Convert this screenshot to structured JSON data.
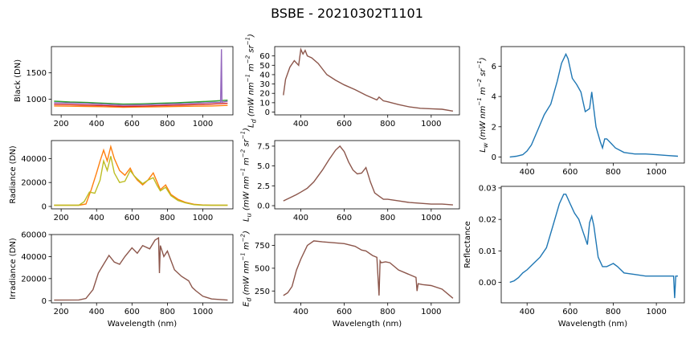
{
  "figure": {
    "title": "BSBE - 20210302T1101"
  },
  "chart_data": [
    {
      "id": "black",
      "type": "line",
      "title": "",
      "xlabel": "",
      "ylabel": "Black (DN)",
      "xlim": [
        145,
        1170
      ],
      "ylim": [
        700,
        2000
      ],
      "xticks": [
        200,
        400,
        600,
        800,
        1000
      ],
      "yticks": [
        1000,
        1500
      ],
      "ytick_labels": [
        "1000",
        "1500"
      ],
      "series": [
        {
          "color": "#ff7f0e",
          "x": [
            160,
            250,
            350,
            450,
            550,
            650,
            750,
            850,
            950,
            1050,
            1140
          ],
          "y": [
            870,
            865,
            860,
            855,
            845,
            850,
            855,
            860,
            865,
            870,
            880
          ]
        },
        {
          "color": "#2ca02c",
          "x": [
            160,
            250,
            350,
            450,
            550,
            650,
            750,
            850,
            950,
            1050,
            1140
          ],
          "y": [
            960,
            945,
            935,
            920,
            905,
            910,
            920,
            930,
            945,
            960,
            980
          ]
        },
        {
          "color": "#d62728",
          "x": [
            160,
            250,
            350,
            450,
            550,
            650,
            750,
            850,
            950,
            1050,
            1140
          ],
          "y": [
            900,
            895,
            885,
            875,
            860,
            865,
            875,
            885,
            895,
            905,
            920
          ]
        },
        {
          "color": "#9467bd",
          "x": [
            160,
            250,
            350,
            450,
            550,
            650,
            750,
            850,
            950,
            1050,
            1100,
            1105,
            1108,
            1112,
            1140
          ],
          "y": [
            930,
            925,
            915,
            900,
            885,
            890,
            900,
            910,
            920,
            935,
            940,
            1950,
            940,
            945,
            960
          ]
        }
      ]
    },
    {
      "id": "radiance",
      "type": "line",
      "title": "",
      "xlabel": "",
      "ylabel": "Radiance (DN)",
      "xlim": [
        145,
        1170
      ],
      "ylim": [
        -2000,
        55000
      ],
      "xticks": [
        200,
        400,
        600,
        800,
        1000
      ],
      "yticks": [
        0,
        20000,
        40000
      ],
      "ytick_labels": [
        "0",
        "20000",
        "40000"
      ],
      "series": [
        {
          "color": "#ff7f0e",
          "x": [
            160,
            300,
            340,
            370,
            400,
            420,
            440,
            460,
            480,
            500,
            530,
            560,
            590,
            610,
            630,
            660,
            690,
            720,
            740,
            760,
            790,
            820,
            860,
            900,
            950,
            1000,
            1050,
            1140
          ],
          "y": [
            1000,
            1000,
            2000,
            14000,
            28000,
            38000,
            47000,
            38000,
            50000,
            40000,
            30000,
            26000,
            32000,
            26000,
            22000,
            18000,
            22000,
            28000,
            21000,
            14000,
            18000,
            10000,
            6000,
            3500,
            1800,
            1200,
            1000,
            1000
          ]
        },
        {
          "color": "#bcbd22",
          "x": [
            160,
            300,
            330,
            360,
            390,
            420,
            440,
            460,
            480,
            500,
            530,
            560,
            590,
            610,
            630,
            660,
            690,
            720,
            740,
            760,
            790,
            820,
            860,
            900,
            950,
            1000,
            1050,
            1140
          ],
          "y": [
            1000,
            1000,
            4000,
            12000,
            11000,
            22000,
            38000,
            30000,
            42000,
            28000,
            20000,
            21000,
            30000,
            26000,
            23000,
            19000,
            22000,
            24000,
            18000,
            13000,
            16000,
            9000,
            5000,
            3000,
            1500,
            1000,
            1000,
            1000
          ]
        }
      ]
    },
    {
      "id": "irradiance",
      "type": "line",
      "title": "",
      "xlabel": "Wavelength (nm)",
      "ylabel": "Irradiance (DN)",
      "xlim": [
        145,
        1170
      ],
      "ylim": [
        -2000,
        60000
      ],
      "xticks": [
        200,
        400,
        600,
        800,
        1000
      ],
      "yticks": [
        0,
        20000,
        40000,
        60000
      ],
      "ytick_labels": [
        "0",
        "20000",
        "40000",
        "60000"
      ],
      "series": [
        {
          "color": "#8c564b",
          "x": [
            160,
            300,
            340,
            380,
            410,
            440,
            470,
            500,
            530,
            560,
            600,
            630,
            660,
            700,
            730,
            750,
            755,
            760,
            780,
            800,
            840,
            880,
            920,
            940,
            960,
            1000,
            1050,
            1140
          ],
          "y": [
            500,
            600,
            2000,
            10000,
            25000,
            33000,
            41000,
            35000,
            33000,
            40000,
            48000,
            43000,
            50000,
            47000,
            55000,
            57000,
            25000,
            50000,
            40000,
            45000,
            28000,
            22000,
            18000,
            12000,
            9000,
            4000,
            1500,
            500
          ]
        }
      ]
    },
    {
      "id": "li",
      "type": "line",
      "title": "",
      "xlabel": "",
      "ylabel": "L_d (mW nm^-1 m^-2 sr^-1)",
      "xlim": [
        280,
        1130
      ],
      "ylim": [
        -3,
        70
      ],
      "xticks": [
        400,
        600,
        800,
        1000
      ],
      "yticks": [
        0,
        10,
        20,
        30,
        40,
        50,
        60
      ],
      "ytick_labels": [
        "0",
        "10",
        "20",
        "30",
        "40",
        "50",
        "60"
      ],
      "series": [
        {
          "color": "#8c564b",
          "x": [
            320,
            330,
            350,
            370,
            390,
            400,
            410,
            420,
            430,
            450,
            480,
            520,
            560,
            600,
            650,
            700,
            750,
            760,
            780,
            800,
            850,
            900,
            950,
            1000,
            1050,
            1100
          ],
          "y": [
            18,
            35,
            48,
            55,
            50,
            67,
            62,
            66,
            60,
            58,
            52,
            40,
            34,
            29,
            24,
            18,
            13,
            16,
            12,
            11,
            8,
            5.5,
            4,
            3.5,
            3,
            1
          ]
        }
      ]
    },
    {
      "id": "lu",
      "type": "line",
      "title": "",
      "xlabel": "",
      "ylabel": "L_u (mW nm^-1 m^-2 sr^-1)",
      "xlim": [
        280,
        1130
      ],
      "ylim": [
        -0.4,
        8.2
      ],
      "xticks": [
        400,
        600,
        800,
        1000
      ],
      "yticks": [
        0.0,
        2.5,
        5.0,
        7.5
      ],
      "ytick_labels": [
        "0.0",
        "2.5",
        "5.0",
        "7.5"
      ],
      "series": [
        {
          "color": "#8c564b",
          "x": [
            320,
            350,
            380,
            400,
            430,
            460,
            500,
            530,
            560,
            580,
            600,
            620,
            640,
            660,
            680,
            700,
            720,
            740,
            760,
            780,
            800,
            850,
            900,
            950,
            1000,
            1050,
            1100
          ],
          "y": [
            0.6,
            1.0,
            1.4,
            1.7,
            2.2,
            3.0,
            4.5,
            5.8,
            7.0,
            7.5,
            6.8,
            5.5,
            4.5,
            4.0,
            4.1,
            4.8,
            3.0,
            1.6,
            1.2,
            0.8,
            0.8,
            0.6,
            0.4,
            0.3,
            0.2,
            0.2,
            0.1
          ]
        }
      ]
    },
    {
      "id": "ed",
      "type": "line",
      "title": "",
      "xlabel": "Wavelength (nm)",
      "ylabel": "E_d (mW nm^-1 m^-2)",
      "xlim": [
        280,
        1130
      ],
      "ylim": [
        120,
        870
      ],
      "xticks": [
        400,
        600,
        800,
        1000
      ],
      "yticks": [
        250,
        500,
        750
      ],
      "ytick_labels": [
        "250",
        "500",
        "750"
      ],
      "series": [
        {
          "color": "#8c564b",
          "x": [
            320,
            340,
            360,
            380,
            400,
            430,
            460,
            500,
            550,
            600,
            650,
            680,
            700,
            730,
            750,
            760,
            765,
            770,
            790,
            810,
            850,
            900,
            930,
            935,
            940,
            960,
            1000,
            1050,
            1100
          ],
          "y": [
            200,
            230,
            300,
            480,
            600,
            750,
            800,
            790,
            780,
            770,
            740,
            700,
            690,
            640,
            620,
            200,
            580,
            560,
            570,
            560,
            480,
            430,
            400,
            250,
            330,
            320,
            310,
            270,
            170
          ]
        }
      ]
    },
    {
      "id": "lw",
      "type": "line",
      "title": "",
      "xlabel": "",
      "ylabel": "L_w (mW nm^-1 m^-2 sr^-1)",
      "xlim": [
        280,
        1130
      ],
      "ylim": [
        -0.4,
        7.3
      ],
      "xticks": [
        400,
        600,
        800,
        1000
      ],
      "yticks": [
        0,
        2,
        4,
        6
      ],
      "ytick_labels": [
        "0",
        "2",
        "4",
        "6"
      ],
      "series": [
        {
          "color": "#1f77b4",
          "x": [
            320,
            350,
            380,
            400,
            420,
            450,
            480,
            510,
            540,
            560,
            580,
            590,
            610,
            630,
            650,
            670,
            690,
            700,
            720,
            740,
            750,
            760,
            770,
            790,
            810,
            850,
            900,
            950,
            1000,
            1050,
            1100
          ],
          "y": [
            0,
            0.05,
            0.15,
            0.4,
            0.8,
            1.8,
            2.8,
            3.5,
            5.0,
            6.2,
            6.8,
            6.5,
            5.2,
            4.8,
            4.3,
            3.0,
            3.2,
            4.3,
            2.0,
            1.0,
            0.6,
            1.2,
            1.2,
            0.9,
            0.6,
            0.3,
            0.2,
            0.2,
            0.15,
            0.1,
            0.05
          ]
        }
      ]
    },
    {
      "id": "reflectance",
      "type": "line",
      "title": "",
      "xlabel": "Wavelength (nm)",
      "ylabel": "Reflectance",
      "xlim": [
        280,
        1130
      ],
      "ylim": [
        -0.0065,
        0.0305
      ],
      "xticks": [
        400,
        600,
        800,
        1000
      ],
      "yticks": [
        0.0,
        0.01,
        0.02,
        0.03
      ],
      "ytick_labels": [
        "0.00",
        "0.01",
        "0.02",
        "0.03"
      ],
      "series": [
        {
          "color": "#1f77b4",
          "x": [
            320,
            340,
            360,
            380,
            400,
            430,
            460,
            490,
            520,
            550,
            570,
            580,
            600,
            620,
            640,
            660,
            680,
            690,
            700,
            710,
            730,
            750,
            770,
            800,
            820,
            850,
            900,
            950,
            1000,
            1050,
            1080,
            1085,
            1090,
            1100
          ],
          "y": [
            0.0,
            0.0005,
            0.0015,
            0.003,
            0.004,
            0.006,
            0.008,
            0.011,
            0.018,
            0.025,
            0.028,
            0.028,
            0.025,
            0.022,
            0.02,
            0.016,
            0.012,
            0.019,
            0.021,
            0.018,
            0.008,
            0.005,
            0.005,
            0.006,
            0.005,
            0.003,
            0.0025,
            0.002,
            0.002,
            0.002,
            0.002,
            -0.005,
            0.002,
            0.002
          ]
        }
      ]
    }
  ]
}
